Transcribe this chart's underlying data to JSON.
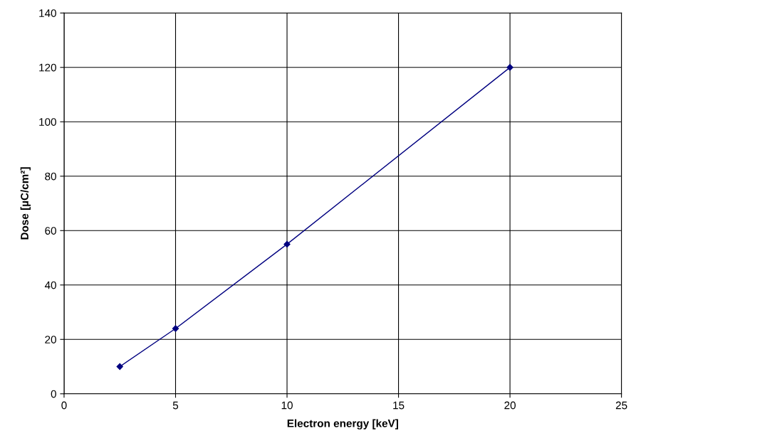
{
  "chart_data": {
    "type": "line",
    "xlabel": "Electron energy [keV]",
    "ylabel": "Dose [µC/cm²]",
    "x": [
      2.5,
      5,
      10,
      20
    ],
    "series": [
      {
        "color": "#000080",
        "values": [
          10,
          24,
          55,
          120
        ]
      }
    ],
    "xlim": [
      0,
      25
    ],
    "xticks": [
      0,
      5,
      10,
      15,
      20,
      25
    ],
    "ylim": [
      0,
      140
    ],
    "yticks": [
      0,
      20,
      40,
      60,
      80,
      100,
      120,
      140
    ],
    "grid": true,
    "marker": "diamond",
    "line_style": "solid",
    "legend": false
  }
}
